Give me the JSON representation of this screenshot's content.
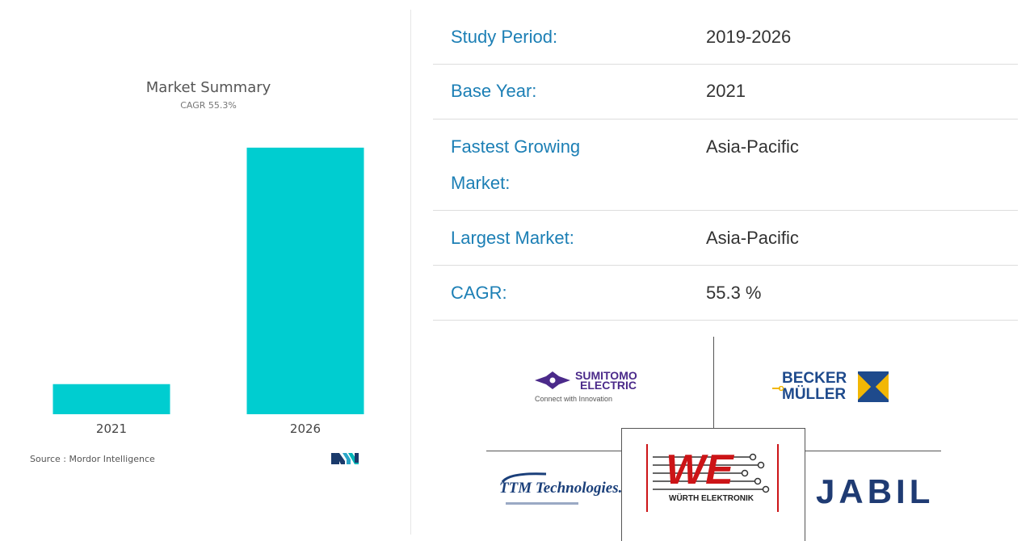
{
  "chart_data": {
    "type": "bar",
    "title": "Market Summary",
    "subtitle": "CAGR 55.3%",
    "categories": [
      "2021",
      "2026"
    ],
    "values": [
      10.5,
      93
    ],
    "ylim": [
      0,
      100
    ],
    "bar_color": "#00cdd0",
    "grid": false,
    "legend": "none",
    "source": "Source : Mordor Intelligence"
  },
  "summary": {
    "rows": [
      {
        "label": "Study Period:",
        "value": "2019-2026"
      },
      {
        "label": "Base Year:",
        "value": "2021"
      },
      {
        "label_line1": "Fastest Growing",
        "label_line2": "Market:",
        "value": "Asia-Pacific"
      },
      {
        "label": "Largest Market:",
        "value": "Asia-Pacific"
      },
      {
        "label": "CAGR:",
        "value": "55.3 %"
      }
    ],
    "label_color": "#1c7fb5"
  },
  "logos": {
    "sumitomo": {
      "line1": "SUMITOMO",
      "line2": "ELECTRIC",
      "tagline": "Connect with Innovation"
    },
    "becker": {
      "line1": "BECKER",
      "line2": "MÜLLER"
    },
    "ttm": {
      "name": "TTM Technologies."
    },
    "wurth": {
      "mark": "WE",
      "name": "WÜRTH ELEKTRONIK"
    },
    "jabil": {
      "name": "JABIL"
    }
  }
}
